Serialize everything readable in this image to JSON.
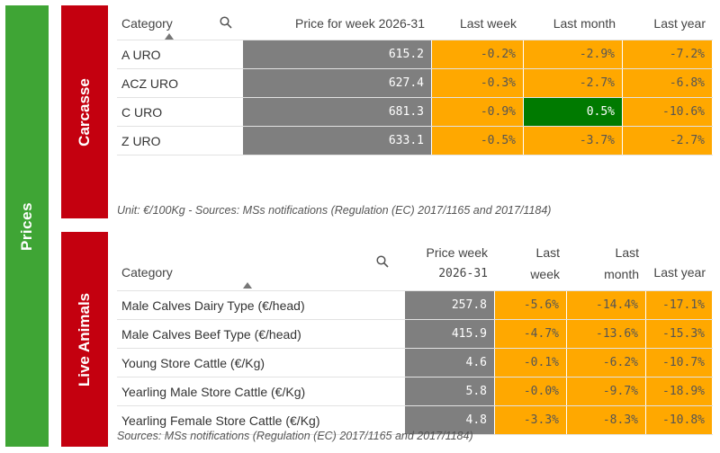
{
  "prices": {
    "label": "Prices"
  },
  "carcasse": {
    "section_label": "Carcasse",
    "headers": {
      "category": "Category",
      "price": "Price for week 2026-31",
      "last_week": "Last week",
      "last_month": "Last month",
      "last_year": "Last year"
    },
    "rows": [
      {
        "category": "A URO",
        "price": "615.2",
        "last_week": "-0.2%",
        "last_month": "-2.9%",
        "last_year": "-7.2%"
      },
      {
        "category": "ACZ URO",
        "price": "627.4",
        "last_week": "-0.3%",
        "last_month": "-2.7%",
        "last_year": "-6.8%"
      },
      {
        "category": "C URO",
        "price": "681.3",
        "last_week": "-0.9%",
        "last_month": "0.5%",
        "last_year": "-10.6%"
      },
      {
        "category": "Z URO",
        "price": "633.1",
        "last_week": "-0.5%",
        "last_month": "-3.7%",
        "last_year": "-2.7%"
      }
    ],
    "note": "Unit: €/100Kg - Sources: MSs notifications (Regulation (EC) 2017/1165 and 2017/1184)"
  },
  "live_animals": {
    "section_label": "Live Animals",
    "headers": {
      "category": "Category",
      "price_l1": "Price week",
      "price_l2": "2026-31",
      "last_week_l1": "Last",
      "last_week_l2": "week",
      "last_month_l1": "Last",
      "last_month_l2": "month",
      "last_year": "Last year"
    },
    "rows": [
      {
        "category": "Male Calves Dairy Type (€/head)",
        "price": "257.8",
        "last_week": "-5.6%",
        "last_month": "-14.4%",
        "last_year": "-17.1%"
      },
      {
        "category": "Male Calves Beef Type (€/head)",
        "price": "415.9",
        "last_week": "-4.7%",
        "last_month": "-13.6%",
        "last_year": "-15.3%"
      },
      {
        "category": "Young Store Cattle (€/Kg)",
        "price": "4.6",
        "last_week": "-0.1%",
        "last_month": "-6.2%",
        "last_year": "-10.7%"
      },
      {
        "category": "Yearling Male Store Cattle (€/Kg)",
        "price": "5.8",
        "last_week": "-0.0%",
        "last_month": "-9.7%",
        "last_year": "-18.9%"
      },
      {
        "category": "Yearling Female Store Cattle (€/Kg)",
        "price": "4.8",
        "last_week": "-3.3%",
        "last_month": "-8.3%",
        "last_year": "-10.8%"
      }
    ],
    "note": "Sources: MSs notifications (Regulation (EC) 2017/1165 and 2017/1184)"
  },
  "colors": {
    "prices_green": "#3fa535",
    "section_red": "#c4000f",
    "price_grey": "#7f7f7f",
    "change_orange": "#ffa800",
    "change_green": "#007a00"
  },
  "icons": [
    "search-icon",
    "sort-ascending-icon"
  ]
}
